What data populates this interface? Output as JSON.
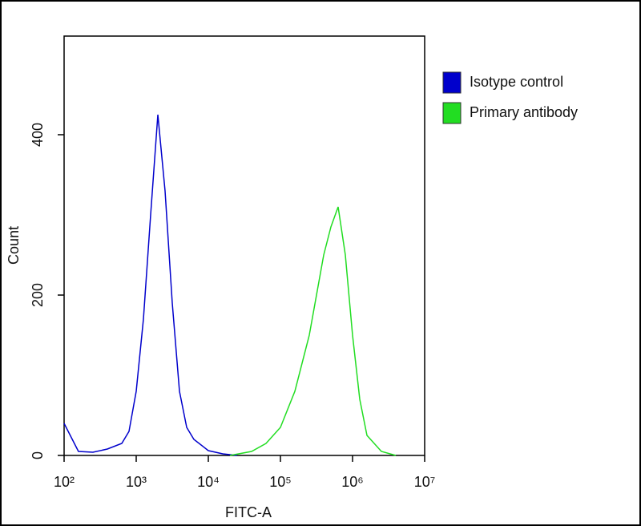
{
  "chart_data": {
    "type": "line",
    "xlabel": "FITC-A",
    "ylabel": "Count",
    "xscale": "log",
    "xlim": [
      100,
      10000000
    ],
    "xticks": [
      {
        "value": 100,
        "label": "10²"
      },
      {
        "value": 1000,
        "label": "10³"
      },
      {
        "value": 10000,
        "label": "10⁴"
      },
      {
        "value": 100000,
        "label": "10⁵"
      },
      {
        "value": 1000000,
        "label": "10⁶"
      },
      {
        "value": 10000000,
        "label": "10⁷"
      }
    ],
    "ylim": [
      0,
      523
    ],
    "yticks": [
      0,
      200,
      400
    ],
    "grid": false,
    "legend": "upper right",
    "series": [
      {
        "name": "Isotype control",
        "color": "#0000cc",
        "x": [
          100,
          158,
          251,
          398,
          631,
          794,
          1000,
          1259,
          1585,
          1995,
          2512,
          3162,
          3981,
          5012,
          6310,
          10000,
          15849,
          25119
        ],
        "values": [
          40,
          5,
          4,
          8,
          15,
          30,
          80,
          170,
          300,
          425,
          330,
          190,
          80,
          35,
          20,
          6,
          2,
          0
        ]
      },
      {
        "name": "Primary antibody",
        "color": "#22dd22",
        "x": [
          19953,
          39811,
          63096,
          100000,
          158489,
          251189,
          316228,
          398107,
          501187,
          630957,
          794328,
          1000000,
          1258925,
          1584893,
          2511886,
          3981072
        ],
        "values": [
          0,
          5,
          15,
          35,
          80,
          150,
          200,
          250,
          285,
          310,
          250,
          150,
          70,
          25,
          5,
          0
        ]
      }
    ]
  }
}
